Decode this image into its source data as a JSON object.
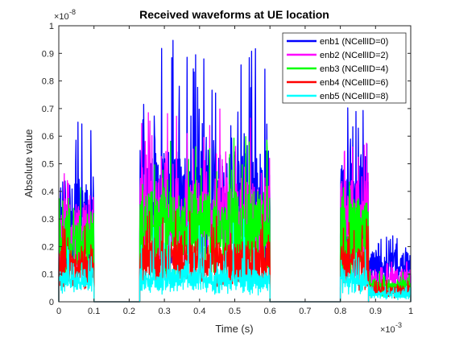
{
  "chart_data": {
    "type": "line",
    "title": "Received waveforms at UE location",
    "xlabel": "Time (s)",
    "ylabel": "Absolute value",
    "x_multiplier_label": "×10",
    "x_multiplier_exp": "-3",
    "y_multiplier_label": "×10",
    "y_multiplier_exp": "-8",
    "xlim": [
      0,
      1
    ],
    "ylim": [
      0,
      1
    ],
    "x_ticks": [
      "0",
      "0.1",
      "0.2",
      "0.3",
      "0.4",
      "0.5",
      "0.6",
      "0.7",
      "0.8",
      "0.9",
      "1"
    ],
    "y_ticks": [
      "0",
      "0.1",
      "0.2",
      "0.3",
      "0.4",
      "0.5",
      "0.6",
      "0.7",
      "0.8",
      "0.9",
      "1"
    ],
    "grid": false,
    "legend_position": "top-right",
    "series": [
      {
        "name": "enb1 (NCellID=0)",
        "color": "#0000ff",
        "segments": [
          {
            "start": 0.0,
            "end": 0.1,
            "base": 0.45,
            "peak": 0.67
          },
          {
            "start": 0.23,
            "end": 0.6,
            "base": 0.55,
            "peak": 0.95
          },
          {
            "start": 0.8,
            "end": 0.88,
            "base": 0.55,
            "peak": 0.72
          },
          {
            "start": 0.88,
            "end": 1.0,
            "base": 0.19,
            "peak": 0.24
          }
        ]
      },
      {
        "name": "enb2 (NCellID=2)",
        "color": "#ff00ff",
        "segments": [
          {
            "start": 0.0,
            "end": 0.1,
            "base": 0.38,
            "peak": 0.5
          },
          {
            "start": 0.23,
            "end": 0.6,
            "base": 0.45,
            "peak": 0.7
          },
          {
            "start": 0.8,
            "end": 0.88,
            "base": 0.45,
            "peak": 0.6
          },
          {
            "start": 0.88,
            "end": 1.0,
            "base": 0.12,
            "peak": 0.15
          }
        ]
      },
      {
        "name": "enb3 (NCellID=4)",
        "color": "#00ff00",
        "segments": [
          {
            "start": 0.0,
            "end": 0.1,
            "base": 0.33,
            "peak": 0.42
          },
          {
            "start": 0.23,
            "end": 0.6,
            "base": 0.4,
            "peak": 0.63
          },
          {
            "start": 0.8,
            "end": 0.88,
            "base": 0.38,
            "peak": 0.48
          },
          {
            "start": 0.88,
            "end": 1.0,
            "base": 0.08,
            "peak": 0.11
          }
        ]
      },
      {
        "name": "enb4 (NCellID=6)",
        "color": "#ff0000",
        "segments": [
          {
            "start": 0.0,
            "end": 0.1,
            "base": 0.2,
            "peak": 0.28
          },
          {
            "start": 0.23,
            "end": 0.6,
            "base": 0.22,
            "peak": 0.38
          },
          {
            "start": 0.8,
            "end": 0.88,
            "base": 0.2,
            "peak": 0.3
          },
          {
            "start": 0.88,
            "end": 1.0,
            "base": 0.06,
            "peak": 0.08
          }
        ]
      },
      {
        "name": "enb5 (NCellID=8)",
        "color": "#00ffff",
        "segments": [
          {
            "start": 0.0,
            "end": 0.1,
            "base": 0.12,
            "peak": 0.2
          },
          {
            "start": 0.23,
            "end": 0.6,
            "base": 0.12,
            "peak": 0.3
          },
          {
            "start": 0.8,
            "end": 0.88,
            "base": 0.12,
            "peak": 0.2
          },
          {
            "start": 0.88,
            "end": 1.0,
            "base": 0.04,
            "peak": 0.06
          }
        ]
      }
    ]
  }
}
